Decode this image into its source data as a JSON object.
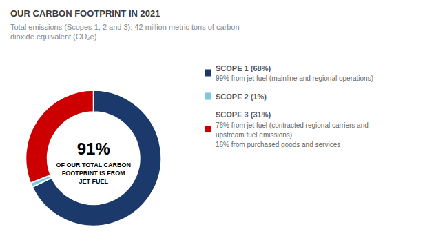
{
  "chart_data": {
    "type": "pie",
    "title": "OUR CARBON FOOTPRINT IN 2021",
    "subtitle": [
      "Total emissions (Scopes 1, 2 and 3): 42 million metric tons of carbon",
      "dioxide equivalent (CO₂e)"
    ],
    "categories": [
      "SCOPE 1 (68%)",
      "SCOPE 2 (1%)",
      "SCOPE 3 (31%)"
    ],
    "values": [
      68,
      1,
      31
    ],
    "colors": [
      "#1B3A6B",
      "#7EC8E3",
      "#CC0000"
    ],
    "annotations": [
      "91%",
      "OF OUR TOTAL CARBON",
      "FOOTPRINT IS FROM",
      "JET FUEL"
    ],
    "legend_notes": [
      [
        "99% from jet fuel (mainline and regional operations)"
      ],
      [],
      [
        "76% from jet fuel (contracted regional carriers and",
        "upstream fuel emissions)",
        "16% from purchased goods and services"
      ]
    ],
    "legend": "right"
  }
}
